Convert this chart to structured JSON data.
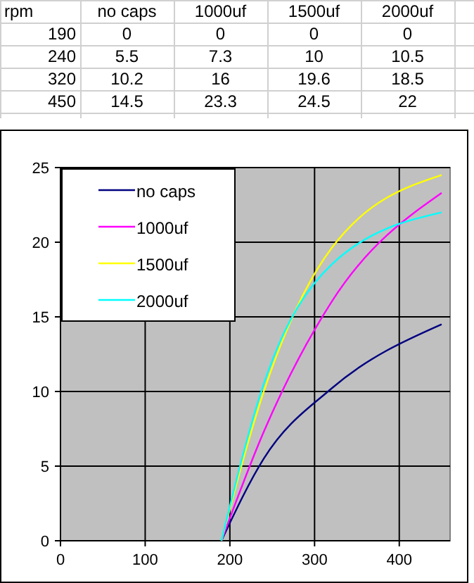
{
  "chart_data": [
    {
      "type": "heatmap",
      "ylabel": "rpm",
      "categories": [
        "no caps",
        "1000uf",
        "1500uf",
        "2000uf"
      ],
      "y_categories": [
        "190",
        "240",
        "320",
        "450"
      ],
      "cells": [
        [
          0,
          0,
          0,
          0
        ],
        [
          5.5,
          7.3,
          10,
          10.5
        ],
        [
          10.2,
          16,
          19.6,
          18.5
        ],
        [
          14.5,
          23.3,
          24.5,
          22
        ]
      ],
      "data_labels": true
    },
    {
      "type": "line",
      "x": [
        190,
        240,
        320,
        450
      ],
      "series": [
        {
          "name": "no caps",
          "color": "#000080",
          "values": [
            0,
            5.5,
            10.2,
            14.5
          ]
        },
        {
          "name": "1000uf",
          "color": "#ff00ff",
          "values": [
            0,
            7.3,
            16,
            23.3
          ]
        },
        {
          "name": "1500uf",
          "color": "#ffff00",
          "values": [
            0,
            10,
            19.6,
            24.5
          ]
        },
        {
          "name": "2000uf",
          "color": "#00ffff",
          "values": [
            0,
            10.5,
            18.5,
            22
          ]
        }
      ],
      "xlim": [
        0,
        460
      ],
      "xticks": [
        0,
        100,
        200,
        300,
        400
      ],
      "ylim": [
        0,
        25
      ],
      "yticks": [
        0,
        5,
        10,
        15,
        20,
        25
      ],
      "grid": true,
      "legend": "top left",
      "marker": "none",
      "line_style": "solid"
    }
  ]
}
